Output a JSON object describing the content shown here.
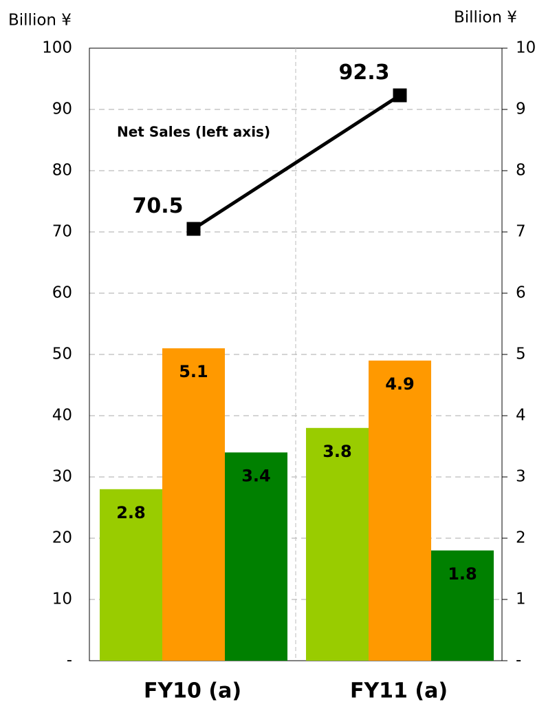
{
  "chart_data": {
    "type": "bar",
    "categories": [
      "FY10 (a)",
      "FY11 (a)"
    ],
    "ylabel": "Billion ¥",
    "y2label": "Billion ¥",
    "ylim": [
      0,
      100
    ],
    "yticks": [
      {
        "value": 0,
        "label": "-"
      },
      10,
      20,
      30,
      40,
      50,
      60,
      70,
      80,
      90,
      100
    ],
    "y2lim": [
      0,
      10
    ],
    "y2ticks": [
      {
        "value": 0,
        "label": "-"
      },
      1,
      2,
      3,
      4,
      5,
      6,
      7,
      8,
      9,
      10
    ],
    "grid": true,
    "series": [
      {
        "color": "#99cc00",
        "axis": "y2",
        "values": [
          2.8,
          3.8
        ]
      },
      {
        "color": "#ff9900",
        "axis": "y2",
        "values": [
          5.1,
          4.9
        ]
      },
      {
        "color": "#008000",
        "axis": "y2",
        "values": [
          3.4,
          1.8
        ]
      },
      {
        "name": "Net Sales (left axis)",
        "type": "line",
        "color": "#000000",
        "values": [
          70.5,
          92.3
        ]
      }
    ]
  }
}
